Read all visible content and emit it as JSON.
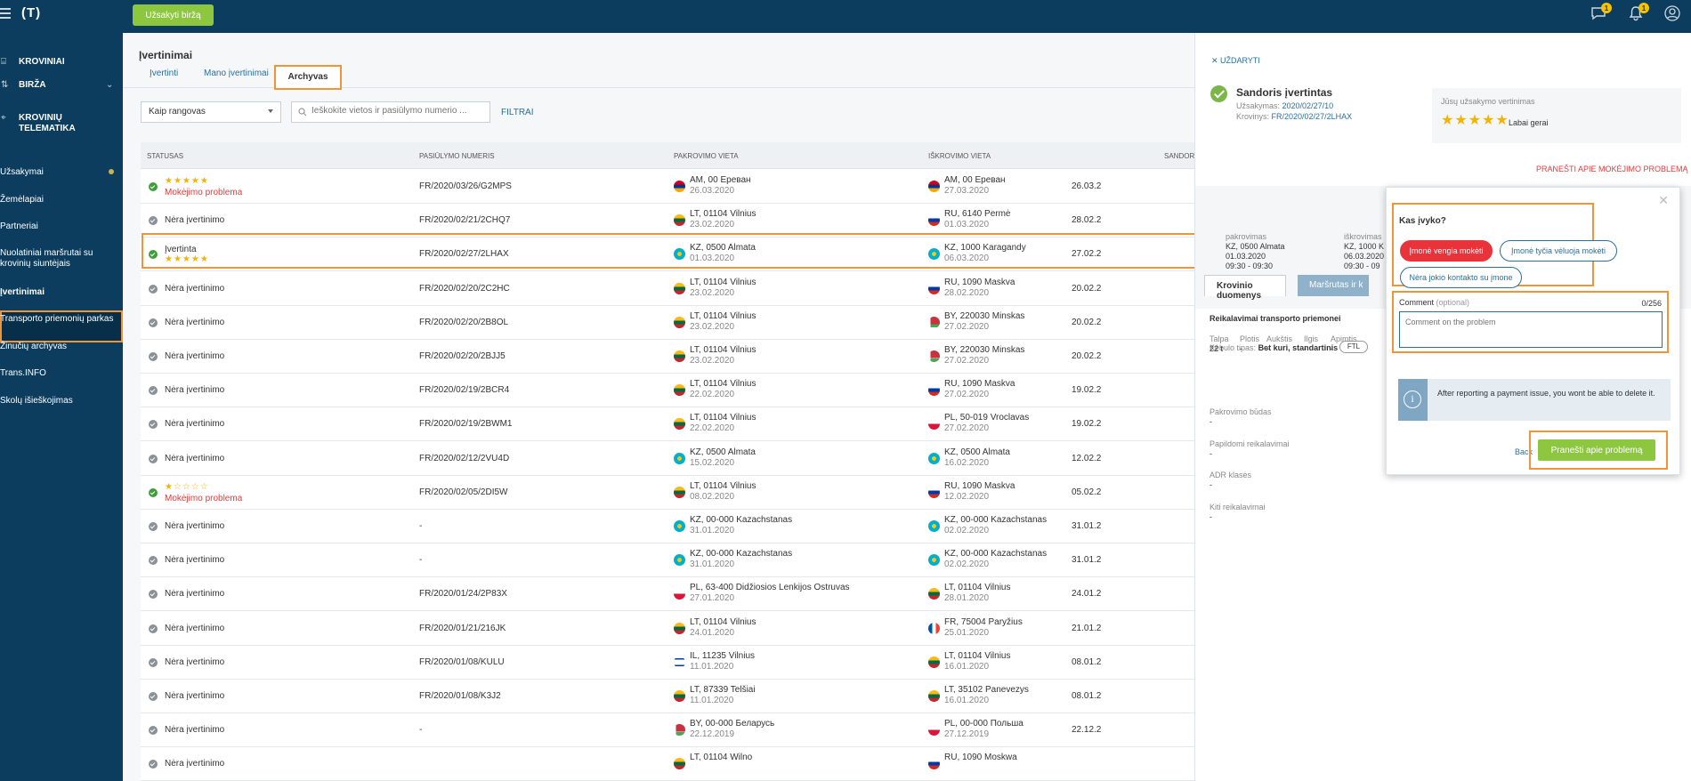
{
  "topbar": {
    "logo": "(T)",
    "order_button": "Užsakyti biržą",
    "messages_badge": "1",
    "notifications_badge": "1"
  },
  "sidebar": {
    "items": [
      {
        "label": "KROVINIAI",
        "icon": "cargo-icon"
      },
      {
        "label": "BIRŽA",
        "icon": "exchange-icon"
      },
      {
        "label": "KROVINIŲ",
        "label2": "TELEMATIKA",
        "icon": "telematics-icon"
      },
      {
        "label": "Užsakymai"
      },
      {
        "label": "Žemėlapiai"
      },
      {
        "label": "Partneriai"
      },
      {
        "label": "Nuolatiniai maršrutai su",
        "label2": "krovinių siuntėjais"
      },
      {
        "label": "Įvertinimai"
      },
      {
        "label": "Transporto priemonių parkas"
      },
      {
        "label": "Žinučių archyvas"
      },
      {
        "label": "Trans.INFO"
      },
      {
        "label": "Skolų išieškojimas"
      }
    ]
  },
  "main": {
    "title": "Įvertinimai",
    "tabs": [
      "Įvertinti",
      "Mano įvertinimai",
      "Archyvas"
    ],
    "filter_select": "Kaip rangovas",
    "search_placeholder": "Ieškokite vietos ir pasiūlymo numerio ...",
    "filters_link": "FILTRAI",
    "columns": [
      "STATUSAS",
      "PASIŪLYMO NUMERIS",
      "PAKROVIMO VIETA",
      "IŠKROVIMO VIETA",
      "SANDORI"
    ],
    "rows": [
      {
        "status": "Mokėjimo problema",
        "stars": "★★★★★",
        "num": "FR/2020/03/26/G2MPS",
        "from": "AM, 00 Ереван",
        "from_date": "26.03.2020",
        "from_flag": "am",
        "to": "AM, 00 Ереван",
        "to_date": "27.03.2020",
        "to_flag": "am",
        "deal": "26.03.2"
      },
      {
        "status": "Nėra įvertinimo",
        "num": "FR/2020/02/21/2CHQ7",
        "from": "LT, 01104 Vilnius",
        "from_date": "23.02.2020",
        "from_flag": "lt",
        "to": "RU, 6140 Permė",
        "to_date": "01.03.2020",
        "to_flag": "ru",
        "deal": "28.02.2"
      },
      {
        "status": "Įvertinta",
        "stars": "★★★★★",
        "num": "FR/2020/02/27/2LHAX",
        "from": "KZ, 0500 Almata",
        "from_date": "01.03.2020",
        "from_flag": "kz",
        "to": "KZ, 1000 Karagandy",
        "to_date": "06.03.2020",
        "to_flag": "kz",
        "deal": "27.02.2"
      },
      {
        "status": "Nėra įvertinimo",
        "num": "FR/2020/02/20/2C2HC",
        "from": "LT, 01104 Vilnius",
        "from_date": "23.02.2020",
        "from_flag": "lt",
        "to": "RU, 1090 Maskva",
        "to_date": "28.02.2020",
        "to_flag": "ru",
        "deal": "20.02.2"
      },
      {
        "status": "Nėra įvertinimo",
        "num": "FR/2020/02/20/2B8OL",
        "from": "LT, 01104 Vilnius",
        "from_date": "23.02.2020",
        "from_flag": "lt",
        "to": "BY, 220030 Minskas",
        "to_date": "27.02.2020",
        "to_flag": "by",
        "deal": "20.02.2"
      },
      {
        "status": "Nėra įvertinimo",
        "num": "FR/2020/02/20/2BJJ5",
        "from": "LT, 01104 Vilnius",
        "from_date": "23.02.2020",
        "from_flag": "lt",
        "to": "BY, 220030 Minskas",
        "to_date": "27.02.2020",
        "to_flag": "by",
        "deal": "20.02.2"
      },
      {
        "status": "Nėra įvertinimo",
        "num": "FR/2020/02/19/2BCR4",
        "from": "LT, 01104 Vilnius",
        "from_date": "22.02.2020",
        "from_flag": "lt",
        "to": "RU, 1090 Maskva",
        "to_date": "27.02.2020",
        "to_flag": "ru",
        "deal": "19.02.2"
      },
      {
        "status": "Nėra įvertinimo",
        "num": "FR/2020/02/19/2BWM1",
        "from": "LT, 01104 Vilnius",
        "from_date": "22.02.2020",
        "from_flag": "lt",
        "to": "PL, 50-019 Vroclavas",
        "to_date": "27.02.2020",
        "to_flag": "pl",
        "deal": "19.02.2"
      },
      {
        "status": "Nėra įvertinimo",
        "num": "FR/2020/02/12/2VU4D",
        "from": "KZ, 0500 Almata",
        "from_date": "15.02.2020",
        "from_flag": "kz",
        "to": "KZ, 0500 Almata",
        "to_date": "16.02.2020",
        "to_flag": "kz",
        "deal": "12.02.2"
      },
      {
        "status": "Mokėjimo problema",
        "stars": "★☆☆☆☆",
        "num": "FR/2020/02/05/2DI5W",
        "from": "LT, 01104 Vilnius",
        "from_date": "08.02.2020",
        "from_flag": "lt",
        "to": "RU, 1090 Maskva",
        "to_date": "12.02.2020",
        "to_flag": "ru",
        "deal": "05.02.2"
      },
      {
        "status": "Nėra įvertinimo",
        "num": "-",
        "from": "KZ, 00-000 Kazachstanas",
        "from_date": "31.01.2020",
        "from_flag": "kz",
        "to": "KZ, 00-000 Kazachstanas",
        "to_date": "02.02.2020",
        "to_flag": "kz",
        "deal": "31.01.2"
      },
      {
        "status": "Nėra įvertinimo",
        "num": "-",
        "from": "KZ, 00-000 Kazachstanas",
        "from_date": "31.01.2020",
        "from_flag": "kz",
        "to": "KZ, 00-000 Kazachstanas",
        "to_date": "02.02.2020",
        "to_flag": "kz",
        "deal": "31.01.2"
      },
      {
        "status": "Nėra įvertinimo",
        "num": "FR/2020/01/24/2P83X",
        "from": "PL, 63-400 Didžiosios Lenkijos Ostruvas",
        "from_date": "27.01.2020",
        "from_flag": "pl",
        "to": "LT, 01104 Vilnius",
        "to_date": "28.01.2020",
        "to_flag": "lt",
        "deal": "24.01.2"
      },
      {
        "status": "Nėra įvertinimo",
        "num": "FR/2020/01/21/216JK",
        "from": "LT, 01104 Vilnius",
        "from_date": "24.01.2020",
        "from_flag": "lt",
        "to": "FR, 75004 Paryžius",
        "to_date": "25.01.2020",
        "to_flag": "fr",
        "deal": "21.01.2"
      },
      {
        "status": "Nėra įvertinimo",
        "num": "FR/2020/01/08/KULU",
        "from": "IL, 11235 Vilnius",
        "from_date": "11.01.2020",
        "from_flag": "il",
        "to": "LT, 01104 Vilnius",
        "to_date": "16.01.2020",
        "to_flag": "lt",
        "deal": "08.01.2"
      },
      {
        "status": "Nėra įvertinimo",
        "num": "FR/2020/01/08/K3J2",
        "from": "LT, 87339 Telšiai",
        "from_date": "11.01.2020",
        "from_flag": "lt",
        "to": "LT, 35102 Panevezys",
        "to_date": "16.01.2020",
        "to_flag": "lt",
        "deal": "08.01.2"
      },
      {
        "status": "Nėra įvertinimo",
        "num": "-",
        "from": "BY, 00-000 Беларусь",
        "from_date": "22.12.2019",
        "from_flag": "by",
        "to": "PL, 00-000 Польша",
        "to_date": "27.12.2019",
        "to_flag": "pl",
        "deal": "22.12.2"
      },
      {
        "status": "Nėra įvertinimo",
        "num": "",
        "from": "LT, 01104 Wilno",
        "from_date": "",
        "from_flag": "lt",
        "to": "RU, 1090 Moskwa",
        "to_date": "",
        "to_flag": "ru",
        "deal": ""
      }
    ]
  },
  "panel": {
    "close_label": "UŽDARYTI",
    "title": "Sandoris įvertintas",
    "order_label": "Užsakymas:",
    "order_value": "2020/02/27/10",
    "cargo_label": "Krovinys:",
    "cargo_value": "FR/2020/02/27/2LHAX",
    "rating_title": "Jūsų užsakymo vertinimas",
    "rating_stars": "★★★★★",
    "rating_label": "Labai gerai",
    "report_link": "PRANEŠTI APIE MOKĖJIMO PROBLEMĄ",
    "loading_h": "pakrovimas",
    "loading_1": "KZ, 0500 Almata",
    "loading_2": "01.03.2020",
    "loading_3": "09:30 - 09:30",
    "unloading_h": "iškrovimas",
    "unloading_1": "KZ, 1000 K",
    "unloading_2": "06.03.2020",
    "unloading_3": "09:30 - 09",
    "tab1": "Krovinio duomenys",
    "tab2": "Maršrutas ir k",
    "req_title": "Reikalavimai transporto priemonei",
    "body_label": "Kėbulo tipas:",
    "body_value": "Bet kuri, standartinis",
    "ftl": "FTL",
    "dims": [
      {
        "h": "Talpa",
        "v": "22 t"
      },
      {
        "h": "Plotis",
        "v": "-"
      },
      {
        "h": "Aukštis",
        "v": "-"
      },
      {
        "h": "Ilgis",
        "v": "-"
      },
      {
        "h": "Apimtis",
        "v": "-"
      }
    ],
    "sections": [
      {
        "h": "Pakrovimo būdas",
        "v": "-"
      },
      {
        "h": "Papildomi reikalavimai",
        "v": "-"
      },
      {
        "h": "ADR klasės",
        "v": "-"
      },
      {
        "h": "Kiti reikalavimai",
        "v": "-"
      }
    ]
  },
  "popup": {
    "question": "Kas įvyko?",
    "options": [
      "Įmonė vengia mokėti",
      "Įmonė tyčia vėluoja mokėti",
      "Nėra jokio kontakto su įmone"
    ],
    "comment_label": "Comment",
    "comment_optional": "(optional)",
    "comment_count": "0/256",
    "comment_placeholder": "Comment on the problem",
    "info_text": "After reporting a payment issue, you wont be able to delete it.",
    "back": "Back",
    "submit": "Pranešti apie problemą"
  }
}
